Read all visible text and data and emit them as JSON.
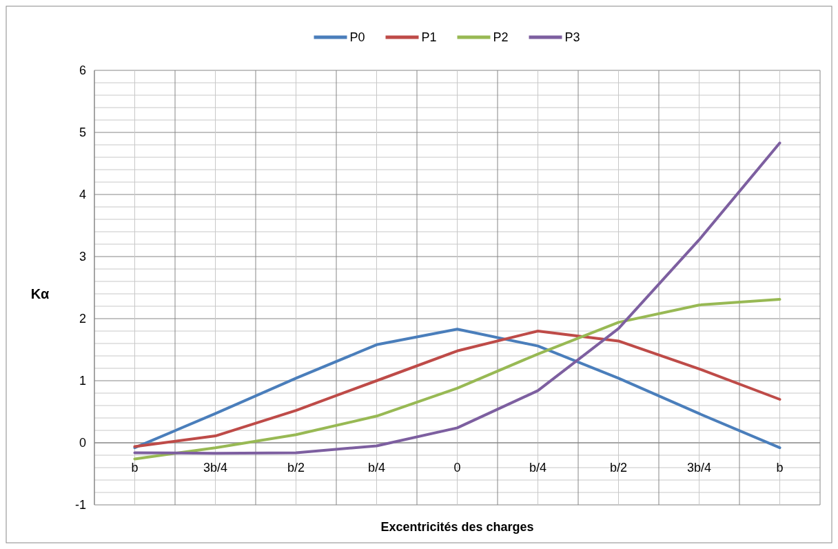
{
  "chart_data": {
    "type": "line",
    "xlabel": "Excentricités des charges",
    "ylabel": "Kα",
    "categories": [
      "b",
      "3b/4",
      "b/2",
      "b/4",
      "0",
      "b/4",
      "b/2",
      "3b/4",
      "b"
    ],
    "series": [
      {
        "name": "P0",
        "color": "#4a7ebb",
        "values": [
          -0.08,
          0.47,
          1.04,
          1.58,
          1.83,
          1.56,
          1.04,
          0.47,
          -0.08
        ]
      },
      {
        "name": "P1",
        "color": "#be4b48",
        "values": [
          -0.06,
          0.11,
          0.52,
          1.0,
          1.48,
          1.8,
          1.64,
          1.19,
          0.7
        ]
      },
      {
        "name": "P2",
        "color": "#98b954",
        "values": [
          -0.26,
          -0.08,
          0.13,
          0.43,
          0.88,
          1.43,
          1.94,
          2.22,
          2.31
        ]
      },
      {
        "name": "P3",
        "color": "#7d5fa0",
        "values": [
          -0.16,
          -0.17,
          -0.16,
          -0.05,
          0.24,
          0.84,
          1.84,
          3.27,
          4.83
        ]
      }
    ],
    "ylim": [
      -1,
      6
    ],
    "yticks": [
      -1,
      {
        "value": -0.8,
        "label": null
      },
      {
        "value": -0.6,
        "label": null
      },
      {
        "value": -0.4,
        "label": null
      },
      {
        "value": -0.2,
        "label": null
      },
      0,
      {
        "value": 0.2,
        "label": null
      },
      {
        "value": 0.4,
        "label": null
      },
      {
        "value": 0.6,
        "label": null
      },
      {
        "value": 0.8,
        "label": null
      },
      1,
      {
        "value": 1.2,
        "label": null
      },
      {
        "value": 1.4,
        "label": null
      },
      {
        "value": 1.6,
        "label": null
      },
      {
        "value": 1.8,
        "label": null
      },
      2,
      {
        "value": 2.2,
        "label": null
      },
      {
        "value": 2.4,
        "label": null
      },
      {
        "value": 2.6,
        "label": null
      },
      {
        "value": 2.8,
        "label": null
      },
      3,
      {
        "value": 3.2,
        "label": null
      },
      {
        "value": 3.4,
        "label": null
      },
      {
        "value": 3.6,
        "label": null
      },
      {
        "value": 3.8,
        "label": null
      },
      4,
      {
        "value": 4.2,
        "label": null
      },
      {
        "value": 4.4,
        "label": null
      },
      {
        "value": 4.6,
        "label": null
      },
      {
        "value": 4.8,
        "label": null
      },
      5,
      {
        "value": 5.2,
        "label": null
      },
      {
        "value": 5.4,
        "label": null
      },
      {
        "value": 5.6,
        "label": null
      },
      {
        "value": 5.8,
        "label": null
      },
      6
    ],
    "grid": true,
    "legend": "top",
    "marker": "none",
    "line_style": "solid"
  }
}
